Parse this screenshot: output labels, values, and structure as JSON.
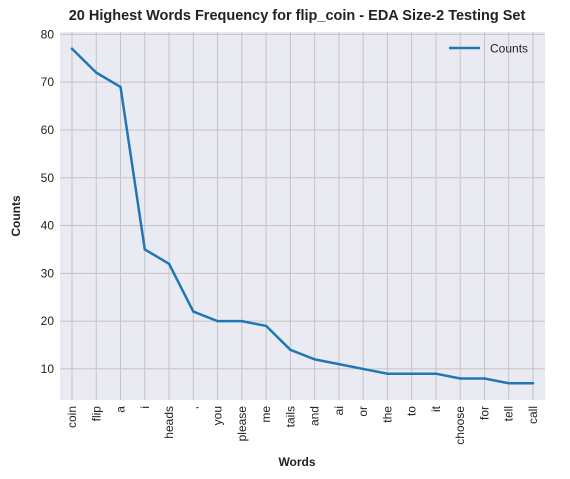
{
  "chart_data": {
    "type": "line",
    "title": "20 Highest Words Frequency for flip_coin - EDA Size-2 Testing Set",
    "xlabel": "Words",
    "ylabel": "Counts",
    "categories": [
      "coin",
      "flip",
      "a",
      "i",
      "heads",
      ",",
      "you",
      "please",
      "me",
      "tails",
      "and",
      "ai",
      "or",
      "the",
      "to",
      "it",
      "choose",
      "for",
      "tell",
      "call"
    ],
    "series": [
      {
        "name": "Counts",
        "values": [
          77,
          72,
          69,
          35,
          32,
          22,
          20,
          20,
          19,
          14,
          12,
          11,
          10,
          9,
          9,
          9,
          8,
          8,
          7,
          7
        ]
      }
    ],
    "ylim": [
      3.5,
      80.5
    ],
    "yticks": [
      10,
      20,
      30,
      40,
      50,
      60,
      70,
      80
    ],
    "grid": true,
    "legend_position": "top-right",
    "colors": {
      "line": "#1f77b4",
      "plot_background": "#eaeaf2",
      "grid": "#c4c4c4"
    }
  }
}
